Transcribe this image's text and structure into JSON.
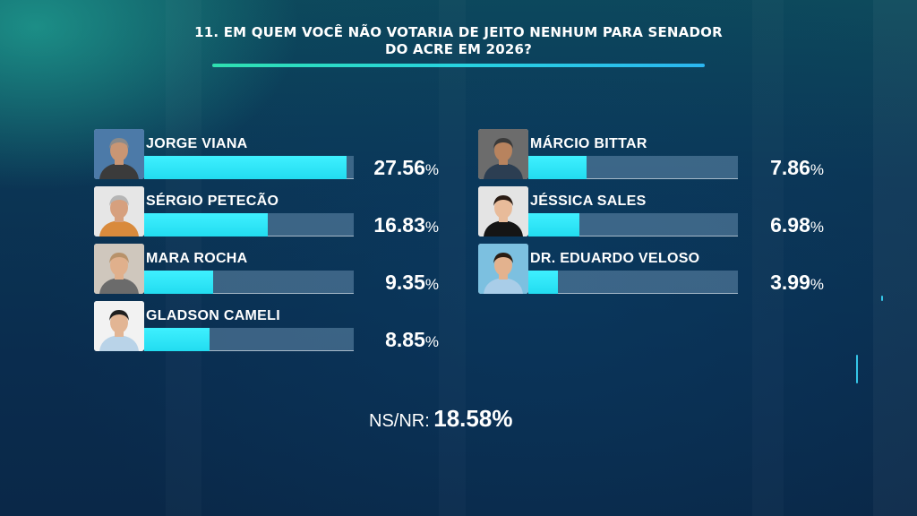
{
  "header": {
    "title_line1": "11. EM QUEM VOCÊ NÃO VOTARIA DE JEITO NENHUM PARA SENADOR",
    "title_line2": "DO ACRE EM 2026?"
  },
  "chart_data": {
    "type": "bar",
    "title": "11. EM QUEM VOCÊ NÃO VOTARIA DE JEITO NENHUM PARA SENADOR DO ACRE EM 2026?",
    "categories": [
      "JORGE VIANA",
      "SÉRGIO PETECÃO",
      "MARA ROCHA",
      "GLADSON CAMELI",
      "MÁRCIO BITTAR",
      "JÉSSICA SALES",
      "DR. EDUARDO VELOSO"
    ],
    "values": [
      27.56,
      16.83,
      9.35,
      8.85,
      7.86,
      6.98,
      3.99
    ],
    "unit": "%",
    "layout": "horizontal",
    "columns": 2
  },
  "candidates": [
    {
      "name": "JORGE VIANA",
      "value": "27.56",
      "pct": 27.56,
      "photo": "man-gray-hair-blue-background"
    },
    {
      "name": "SÉRGIO PETECÃO",
      "value": "16.83",
      "pct": 16.83,
      "photo": "man-gray-hair-orange-shirt"
    },
    {
      "name": "MARA ROCHA",
      "value": "9.35",
      "pct": 9.35,
      "photo": "woman-curly-hair-glasses"
    },
    {
      "name": "GLADSON CAMELI",
      "value": "8.85",
      "pct": 8.85,
      "photo": "man-dark-hair-light-shirt"
    },
    {
      "name": "MÁRCIO BITTAR",
      "value": "7.86",
      "pct": 7.86,
      "photo": "man-mustache-dark-shirt"
    },
    {
      "name": "JÉSSICA SALES",
      "value": "6.98",
      "pct": 6.98,
      "photo": "woman-dark-hair-black-top"
    },
    {
      "name": "DR. EDUARDO VELOSO",
      "value": "3.99",
      "pct": 3.99,
      "photo": "young-man-light-blue-shirt"
    }
  ],
  "percent_symbol": "%",
  "footer": {
    "label": "NS/NR:",
    "value": "18.58%"
  },
  "colors": {
    "bar_fill": "#2ae4f5",
    "bar_track": "#5f7f99",
    "accent_line": "#2fd8c8",
    "background": "#0b2f4f"
  }
}
